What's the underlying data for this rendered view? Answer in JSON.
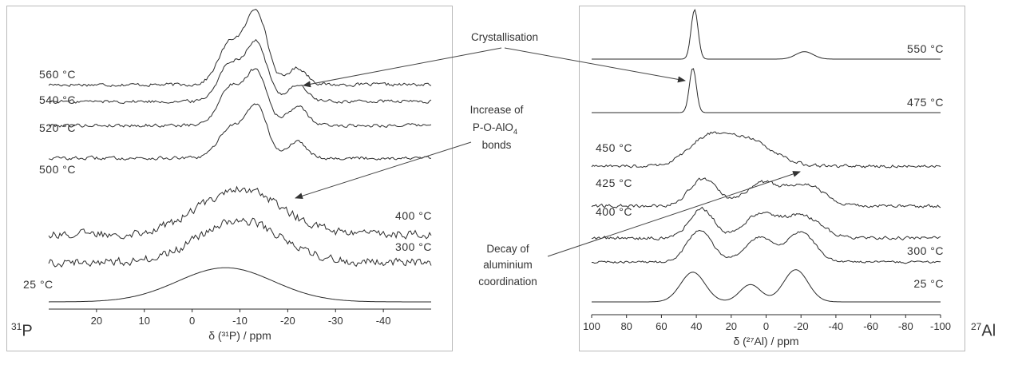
{
  "chart_data": [
    {
      "type": "line",
      "nucleus": "31P",
      "nucleus_mass": "31",
      "nucleus_symbol": "P",
      "xlabel": "δ (³¹P) / ppm",
      "xlim": [
        30,
        -50
      ],
      "xticks": [
        "20",
        "10",
        "0",
        "-10",
        "-20",
        "-30",
        "-40"
      ],
      "xtick_values": [
        20,
        10,
        0,
        -10,
        -20,
        -30,
        -40
      ],
      "series": [
        {
          "name": "560 °C",
          "label": "560 °C",
          "peaks": [
            [
              -8,
              0.55,
              2.5
            ],
            [
              -13.5,
              0.95,
              2.2
            ],
            [
              -22,
              0.22,
              2.0
            ]
          ],
          "noise": 0.02
        },
        {
          "name": "540 °C",
          "label": "540 °C",
          "peaks": [
            [
              -8,
              0.5,
              2.5
            ],
            [
              -13.5,
              0.75,
              2.2
            ],
            [
              -22,
              0.22,
              2.0
            ]
          ],
          "noise": 0.02
        },
        {
          "name": "520 °C",
          "label": "520 °C",
          "peaks": [
            [
              -8,
              0.5,
              2.5
            ],
            [
              -13.5,
              0.7,
              2.2
            ],
            [
              -22,
              0.25,
              2.0
            ]
          ],
          "noise": 0.02
        },
        {
          "name": "500 °C",
          "label": "500 °C",
          "peaks": [
            [
              -8,
              0.4,
              2.5
            ],
            [
              -13.5,
              0.68,
              2.2
            ],
            [
              -22,
              0.22,
              2.0
            ]
          ],
          "noise": 0.02
        },
        {
          "name": "400 °C",
          "label": "400 °C",
          "peaks": [
            [
              -10,
              0.6,
              8.5
            ]
          ],
          "noise": 0.05
        },
        {
          "name": "300 °C",
          "label": "300 °C",
          "peaks": [
            [
              -10,
              0.55,
              8.5
            ]
          ],
          "noise": 0.05
        },
        {
          "name": "25 °C",
          "label": "25 °C",
          "peaks": [
            [
              -7,
              0.45,
              10
            ]
          ],
          "noise": 0.0
        }
      ]
    },
    {
      "type": "line",
      "nucleus": "27Al",
      "nucleus_mass": "27",
      "nucleus_symbol": "Al",
      "xlabel": "δ (²⁷Al) / ppm",
      "xlim": [
        100,
        -100
      ],
      "xticks": [
        "100",
        "80",
        "60",
        "40",
        "20",
        "0",
        "-20",
        "-40",
        "-60",
        "-80",
        "-100"
      ],
      "xtick_values": [
        100,
        80,
        60,
        40,
        20,
        0,
        -20,
        -40,
        -60,
        -80,
        -100
      ],
      "series": [
        {
          "name": "550 °C",
          "label": "550 °C",
          "peaks": [
            [
              41,
              1.0,
              2.0
            ],
            [
              -22,
              0.15,
              5
            ]
          ],
          "noise": 0.0
        },
        {
          "name": "475 °C",
          "label": "475 °C",
          "peaks": [
            [
              42,
              0.9,
              2.0
            ]
          ],
          "noise": 0.0
        },
        {
          "name": "450 °C",
          "label": "450 °C",
          "peaks": [
            [
              35,
              0.45,
              11
            ],
            [
              12,
              0.55,
              15
            ]
          ],
          "noise": 0.03
        },
        {
          "name": "425 °C",
          "label": "425 °C",
          "peaks": [
            [
              36,
              0.55,
              8
            ],
            [
              3,
              0.45,
              9
            ],
            [
              -22,
              0.45,
              11
            ]
          ],
          "noise": 0.03
        },
        {
          "name": "400 °C",
          "label": "400 °C",
          "peaks": [
            [
              37,
              0.6,
              7
            ],
            [
              4,
              0.45,
              9
            ],
            [
              -20,
              0.45,
              11
            ]
          ],
          "noise": 0.03
        },
        {
          "name": "300 °C",
          "label": "300 °C",
          "peaks": [
            [
              38,
              0.65,
              7
            ],
            [
              4,
              0.5,
              8
            ],
            [
              -20,
              0.6,
              8
            ]
          ],
          "noise": 0.02
        },
        {
          "name": "25 °C",
          "label": "25 °C",
          "peaks": [
            [
              42,
              0.6,
              7
            ],
            [
              9,
              0.35,
              6
            ],
            [
              -17,
              0.65,
              7
            ]
          ],
          "noise": 0.0
        }
      ]
    }
  ],
  "annotations": {
    "crystallisation": "Crystallisation",
    "increase_line1": "Increase of",
    "increase_line2": "P-O-AlO",
    "increase_sub": "4",
    "increase_line3": "bonds",
    "decay_line1": "Decay of",
    "decay_line2": "aluminium",
    "decay_line3": "coordination"
  }
}
